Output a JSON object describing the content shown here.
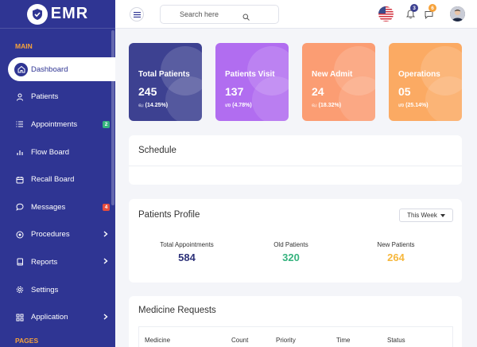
{
  "brand": {
    "name": "EMR"
  },
  "sidebar": {
    "section_main": "MAIN",
    "section_pages": "PAGES",
    "items": [
      {
        "label": "Dashboard",
        "icon": "home-icon",
        "active": true
      },
      {
        "label": "Patients",
        "icon": "user-icon"
      },
      {
        "label": "Appointments",
        "icon": "list-icon",
        "badge": "2",
        "badge_color": "#36b37e"
      },
      {
        "label": "Flow Board",
        "icon": "bar-chart-icon"
      },
      {
        "label": "Recall Board",
        "icon": "calendar-icon"
      },
      {
        "label": "Messages",
        "icon": "chat-bubble-icon",
        "badge": "4",
        "badge_color": "#e74c3c"
      },
      {
        "label": "Procedures",
        "icon": "target-icon",
        "chevron": true
      },
      {
        "label": "Reports",
        "icon": "book-icon",
        "chevron": true
      },
      {
        "label": "Settings",
        "icon": "gear-icon"
      },
      {
        "label": "Application",
        "icon": "grid-icon",
        "chevron": true
      }
    ]
  },
  "header": {
    "search_placeholder": "Search here",
    "notifications_count": "3",
    "messages_count": "6"
  },
  "stats": [
    {
      "title": "Total Patients",
      "value": "245",
      "change": "(14.25%)",
      "trend": "up",
      "color": "#3d4191"
    },
    {
      "title": "Patients Visit",
      "value": "137",
      "change": "(4.78%)",
      "trend": "down",
      "color": "#b16df0"
    },
    {
      "title": "New Admit",
      "value": "24",
      "change": "(18.32%)",
      "trend": "up",
      "color": "#fb9d73"
    },
    {
      "title": "Operations",
      "value": "05",
      "change": "(25.14%)",
      "trend": "down",
      "color": "#fbaa63"
    }
  ],
  "schedule": {
    "title": "Schedule"
  },
  "profile": {
    "title": "Patients Profile",
    "filter": "This Week",
    "kpis": [
      {
        "label": "Total Appointments",
        "value": "584",
        "color": "#2d3279"
      },
      {
        "label": "Old Patients",
        "value": "320",
        "color": "#36b37e"
      },
      {
        "label": "New Patients",
        "value": "264",
        "color": "#f6b73c"
      }
    ]
  },
  "medicine": {
    "title": "Medicine Requests",
    "columns": [
      "Medicine",
      "Count",
      "Priority",
      "Time",
      "Status"
    ]
  }
}
